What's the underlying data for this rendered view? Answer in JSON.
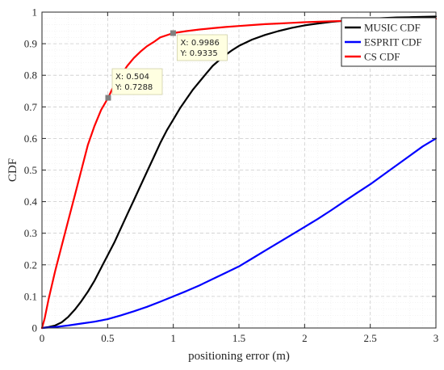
{
  "chart_data": {
    "type": "line",
    "title": "",
    "xlabel": "positioning error (m)",
    "ylabel": "CDF",
    "xlim": [
      0,
      3
    ],
    "ylim": [
      0,
      1
    ],
    "x_ticks": [
      "0",
      "0.5",
      "1",
      "1.5",
      "2",
      "2.5",
      "3"
    ],
    "y_ticks": [
      "0",
      "0.1",
      "0.2",
      "0.3",
      "0.4",
      "0.5",
      "0.6",
      "0.7",
      "0.8",
      "0.9",
      "1"
    ],
    "grid": true,
    "minor_grid": true,
    "legend_position": "top-right",
    "series": [
      {
        "name": "MUSIC CDF",
        "color": "#000000",
        "x": [
          0,
          0.05,
          0.1,
          0.15,
          0.2,
          0.25,
          0.3,
          0.35,
          0.4,
          0.45,
          0.5,
          0.55,
          0.6,
          0.65,
          0.7,
          0.75,
          0.8,
          0.85,
          0.9,
          0.95,
          1.0,
          1.05,
          1.1,
          1.15,
          1.2,
          1.25,
          1.3,
          1.35,
          1.4,
          1.45,
          1.5,
          1.6,
          1.7,
          1.8,
          1.9,
          2.0,
          2.1,
          2.2,
          2.3,
          2.4,
          2.5,
          2.6,
          2.7,
          2.8,
          2.9,
          3.0
        ],
        "y": [
          0,
          0.003,
          0.008,
          0.018,
          0.035,
          0.058,
          0.085,
          0.115,
          0.15,
          0.19,
          0.23,
          0.27,
          0.315,
          0.36,
          0.405,
          0.45,
          0.495,
          0.54,
          0.585,
          0.625,
          0.66,
          0.695,
          0.725,
          0.755,
          0.78,
          0.805,
          0.83,
          0.848,
          0.865,
          0.88,
          0.893,
          0.913,
          0.928,
          0.94,
          0.95,
          0.958,
          0.964,
          0.969,
          0.973,
          0.976,
          0.979,
          0.981,
          0.983,
          0.984,
          0.985,
          0.986
        ]
      },
      {
        "name": "ESPRIT CDF",
        "color": "#0000ff",
        "x": [
          0,
          0.1,
          0.2,
          0.3,
          0.4,
          0.5,
          0.6,
          0.7,
          0.8,
          0.9,
          1.0,
          1.1,
          1.2,
          1.3,
          1.4,
          1.5,
          1.6,
          1.7,
          1.8,
          1.9,
          2.0,
          2.1,
          2.2,
          2.3,
          2.4,
          2.5,
          2.6,
          2.7,
          2.8,
          2.9,
          3.0
        ],
        "y": [
          0,
          0.003,
          0.008,
          0.014,
          0.02,
          0.028,
          0.04,
          0.053,
          0.067,
          0.083,
          0.1,
          0.117,
          0.135,
          0.155,
          0.175,
          0.195,
          0.22,
          0.245,
          0.27,
          0.295,
          0.32,
          0.345,
          0.372,
          0.4,
          0.428,
          0.455,
          0.485,
          0.515,
          0.545,
          0.575,
          0.6
        ]
      },
      {
        "name": "CS CDF",
        "color": "#ff0000",
        "x": [
          0,
          0.02,
          0.05,
          0.1,
          0.15,
          0.2,
          0.25,
          0.3,
          0.35,
          0.4,
          0.45,
          0.504,
          0.55,
          0.6,
          0.65,
          0.7,
          0.75,
          0.8,
          0.85,
          0.9,
          0.9986,
          1.1,
          1.2,
          1.3,
          1.4,
          1.5,
          1.6,
          1.7,
          1.8,
          1.9,
          2.0,
          2.2,
          2.4,
          2.6,
          2.8,
          3.0
        ],
        "y": [
          0,
          0.03,
          0.09,
          0.18,
          0.26,
          0.34,
          0.42,
          0.5,
          0.58,
          0.64,
          0.69,
          0.7288,
          0.77,
          0.8,
          0.83,
          0.855,
          0.875,
          0.892,
          0.905,
          0.92,
          0.9335,
          0.94,
          0.945,
          0.949,
          0.953,
          0.956,
          0.959,
          0.962,
          0.964,
          0.966,
          0.968,
          0.971,
          0.973,
          0.975,
          0.977,
          0.979
        ]
      }
    ],
    "data_tips": [
      {
        "x": 0.504,
        "y": 0.7288,
        "x_label": "X: 0.504",
        "y_label": "Y: 0.7288"
      },
      {
        "x": 0.9986,
        "y": 0.9335,
        "x_label": "X: 0.9986",
        "y_label": "Y: 0.9335"
      }
    ]
  }
}
